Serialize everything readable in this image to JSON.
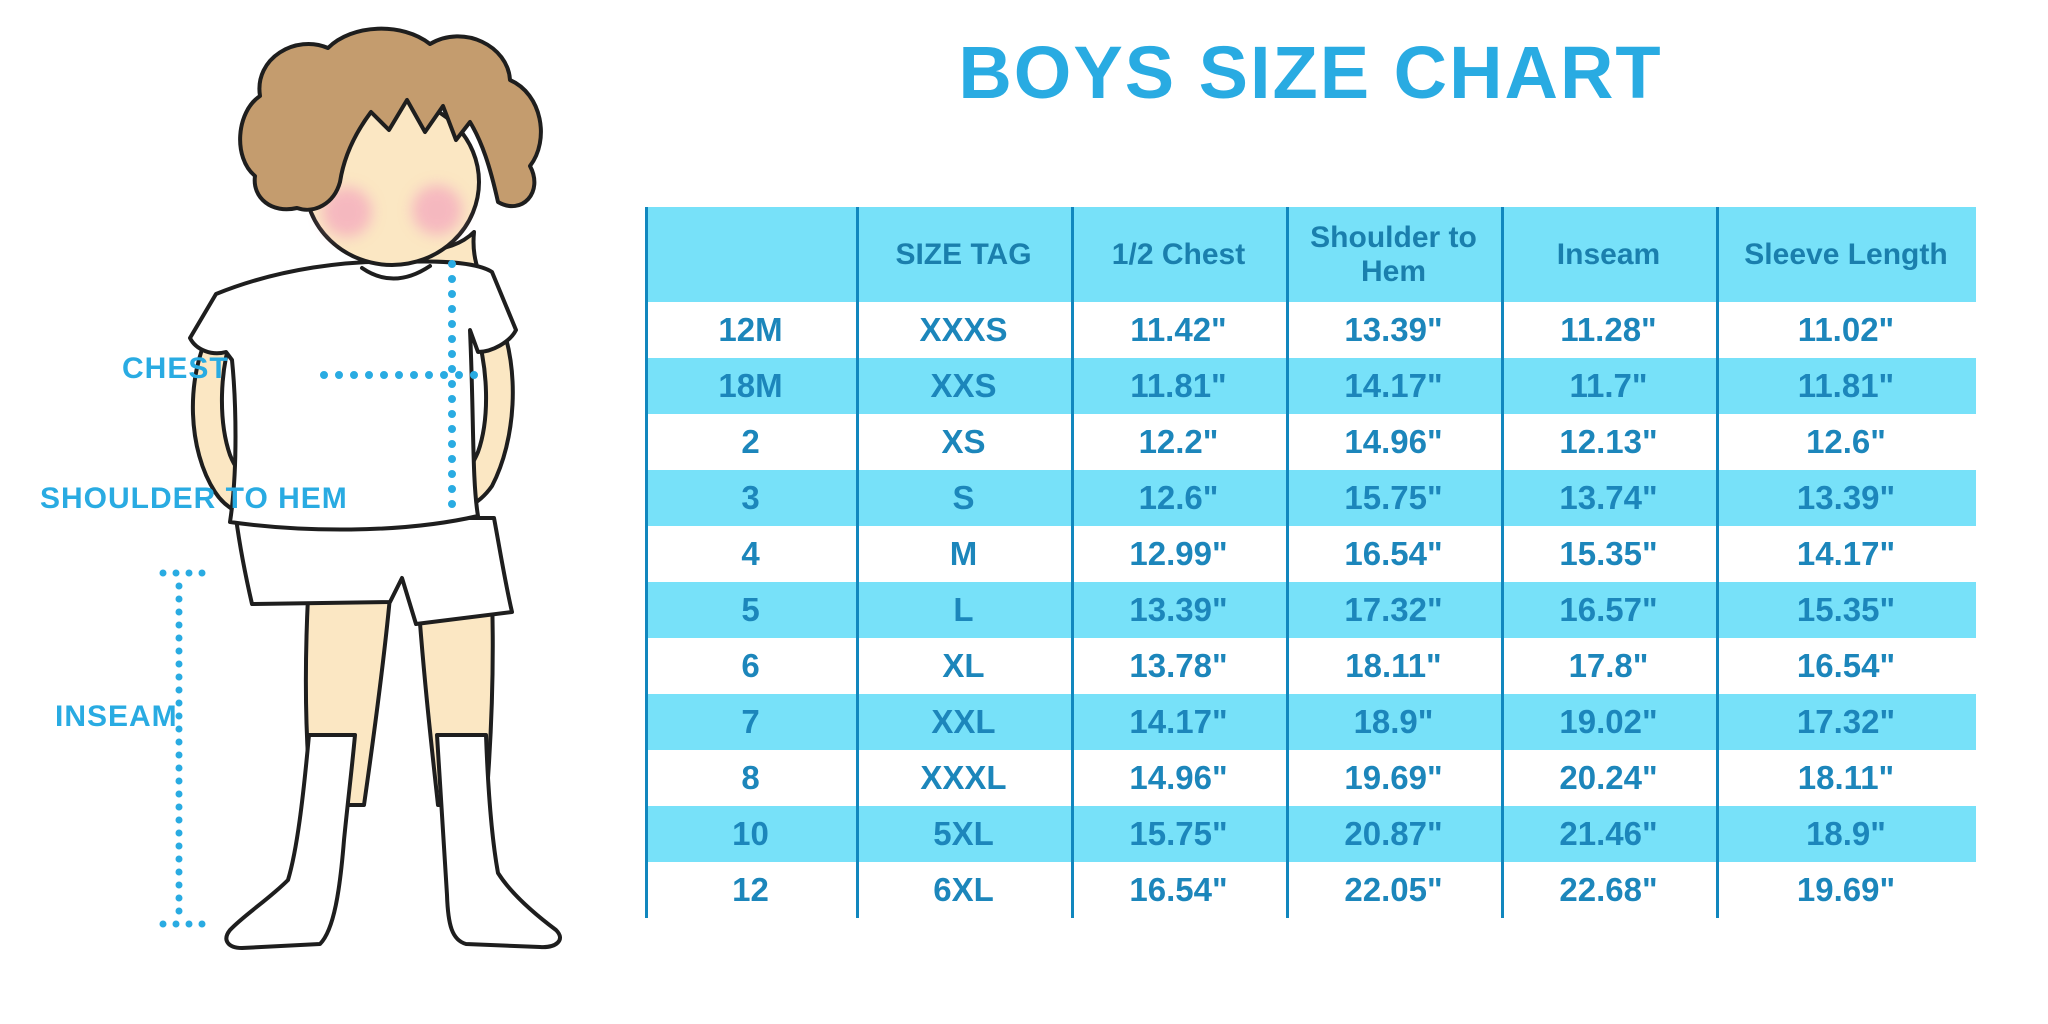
{
  "title": "BOYS SIZE CHART",
  "accent_color": "#29ABE2",
  "chart_data": {
    "type": "table",
    "title": "BOYS SIZE CHART",
    "columns": [
      "",
      "SIZE TAG",
      "1/2 Chest",
      "Shoulder to Hem",
      "Inseam",
      "Sleeve Length"
    ],
    "column_keys": [
      "size",
      "size-tag",
      "half-chest",
      "shoulder-to-hem",
      "inseam",
      "sleeve-length"
    ],
    "rows": [
      [
        "12M",
        "XXXS",
        "11.42\"",
        "13.39\"",
        "11.28\"",
        "11.02\""
      ],
      [
        "18M",
        "XXS",
        "11.81\"",
        "14.17\"",
        "11.7\"",
        "11.81\""
      ],
      [
        "2",
        "XS",
        "12.2\"",
        "14.96\"",
        "12.13\"",
        "12.6\""
      ],
      [
        "3",
        "S",
        "12.6\"",
        "15.75\"",
        "13.74\"",
        "13.39\""
      ],
      [
        "4",
        "M",
        "12.99\"",
        "16.54\"",
        "15.35\"",
        "14.17\""
      ],
      [
        "5",
        "L",
        "13.39\"",
        "17.32\"",
        "16.57\"",
        "15.35\""
      ],
      [
        "6",
        "XL",
        "13.78\"",
        "18.11\"",
        "17.8\"",
        "16.54\""
      ],
      [
        "7",
        "XXL",
        "14.17\"",
        "18.9\"",
        "19.02\"",
        "17.32\""
      ],
      [
        "8",
        "XXXL",
        "14.96\"",
        "19.69\"",
        "20.24\"",
        "18.11\""
      ],
      [
        "10",
        "5XL",
        "15.75\"",
        "20.87\"",
        "21.46\"",
        "18.9\""
      ],
      [
        "12",
        "6XL",
        "16.54\"",
        "22.05\"",
        "22.68\"",
        "19.69\""
      ]
    ],
    "units": "inches",
    "header_bg": "#77E1F9",
    "stripe_bg": "#77E1F9",
    "header_text_color": "#1A7FAD",
    "cell_text_color": "#1C86BB",
    "grid_line_color": "#1187BE",
    "stripe_pattern": "alternating white and light blue, first data row white"
  },
  "figure": {
    "description": "cartoon boy in white t-shirt, shorts and knee socks with measurement guides",
    "labels": {
      "chest": "CHEST",
      "shoulder_to_hem": "SHOULDER TO HEM",
      "inseam": "INSEAM"
    },
    "colors": {
      "skin": "#FBE7C3",
      "hair": "#C49C6E",
      "outline": "#1E1E1E",
      "blush": "#F4A9BE",
      "clothes": "#FFFFFF",
      "dotted_guides": "#29ABE2"
    }
  }
}
